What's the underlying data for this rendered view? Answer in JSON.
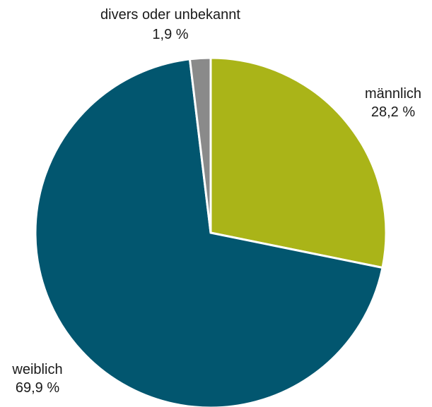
{
  "chart_data": {
    "type": "pie",
    "slices": [
      {
        "name": "männlich",
        "value_label": "28,2 %",
        "value": 28.2,
        "color": "#aab418"
      },
      {
        "name": "weiblich",
        "value_label": "69,9 %",
        "value": 69.9,
        "color": "#02566f"
      },
      {
        "name": "divers oder unbekannt",
        "value_label": "1,9 %",
        "value": 1.9,
        "color": "#8a8a8a"
      }
    ],
    "start_angle_deg": 0,
    "direction": "clockwise",
    "slice_separator_color": "#ffffff"
  }
}
